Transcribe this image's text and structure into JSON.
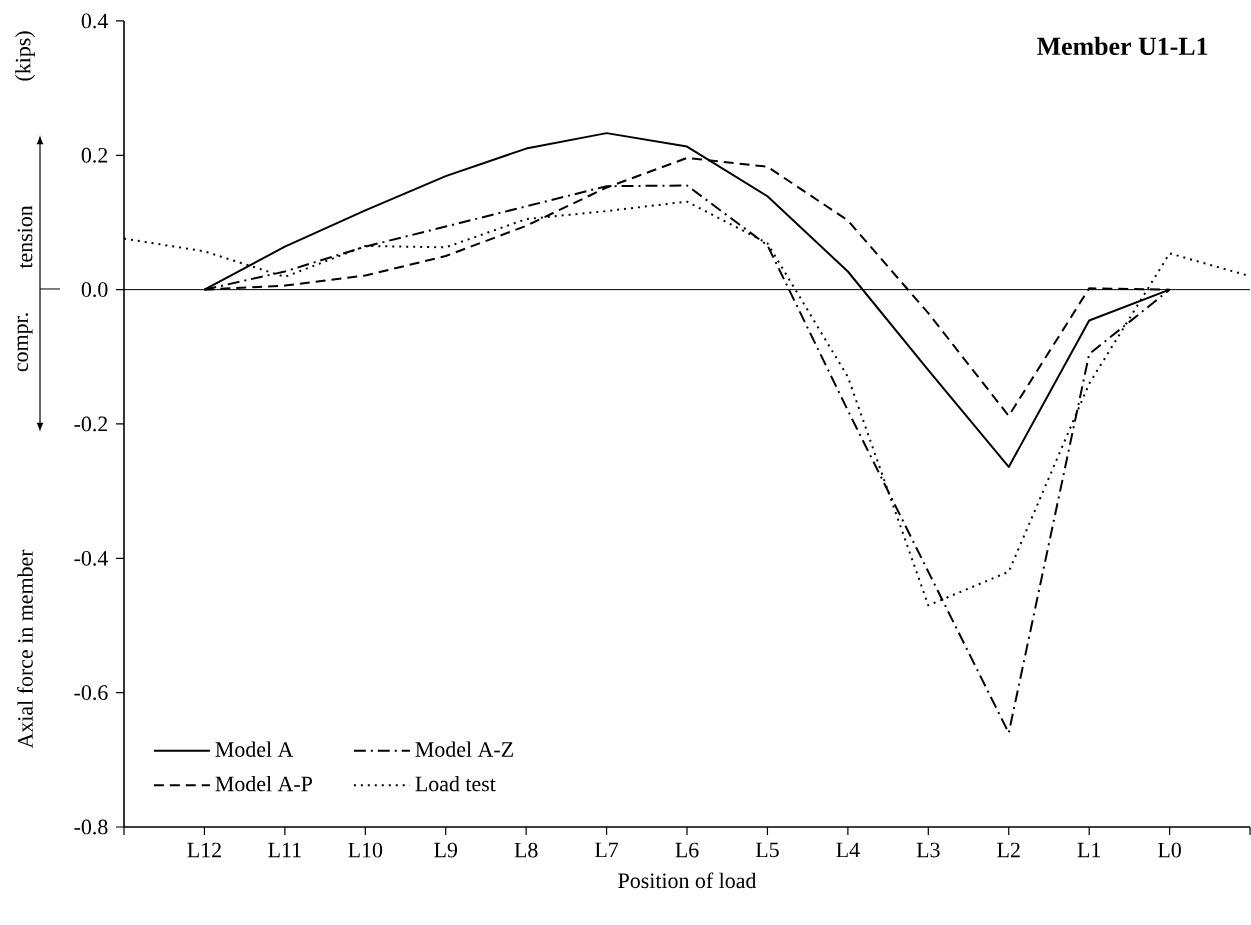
{
  "chart_data": {
    "type": "line",
    "title": "Member U1-L1",
    "xlabel": "Position of load",
    "ylabel": "Axial force in member",
    "annotations": [
      "(kips)",
      "tension",
      "compr."
    ],
    "categories": [
      null,
      "L12",
      "L11",
      "L10",
      "L9",
      "L8",
      "L7",
      "L6",
      "L5",
      "L4",
      "L3",
      "L2",
      "L1",
      "L0",
      null
    ],
    "ylim": [
      -0.8,
      0.4
    ],
    "yticks": [
      {
        "value": -0.8,
        "label": "-0.8"
      },
      {
        "value": -0.6,
        "label": "-0.6"
      },
      {
        "value": -0.4,
        "label": "-0.4"
      },
      {
        "value": -0.2,
        "label": "-0.2"
      },
      {
        "value": 0,
        "label": "0.0"
      },
      {
        "value": 0.2,
        "label": "0.2"
      },
      {
        "value": 0.4,
        "label": "0.4"
      }
    ],
    "ref_lines": [
      {
        "axis": "y",
        "value": 0,
        "color": "#000000"
      }
    ],
    "legend": "bottom left",
    "series": [
      {
        "name": "Model A",
        "color": "#000000",
        "line_style": "solid",
        "values": [
          null,
          0,
          0.064,
          0.118,
          0.169,
          0.21,
          0.233,
          0.213,
          0.139,
          0.027,
          -0.12,
          -0.264,
          -0.046,
          0,
          null
        ]
      },
      {
        "name": "Model A-P",
        "color": "#000000",
        "line_style": "dashed",
        "values": [
          null,
          0,
          0.006,
          0.021,
          0.05,
          0.095,
          0.152,
          0.196,
          0.183,
          0.103,
          -0.035,
          -0.188,
          0.002,
          0,
          null
        ]
      },
      {
        "name": "Model A-Z",
        "color": "#000000",
        "line_style": "dashdot",
        "values": [
          null,
          0,
          0.027,
          0.064,
          0.094,
          0.124,
          0.154,
          0.155,
          0.066,
          -0.18,
          -0.42,
          -0.66,
          -0.096,
          0,
          null
        ]
      },
      {
        "name": "Load test",
        "color": "#000000",
        "line_style": "dotted",
        "values": [
          0.076,
          0.057,
          0.019,
          0.065,
          0.063,
          0.105,
          0.117,
          0.131,
          0.069,
          -0.13,
          -0.47,
          -0.42,
          -0.14,
          0.054,
          0.02
        ]
      }
    ]
  }
}
